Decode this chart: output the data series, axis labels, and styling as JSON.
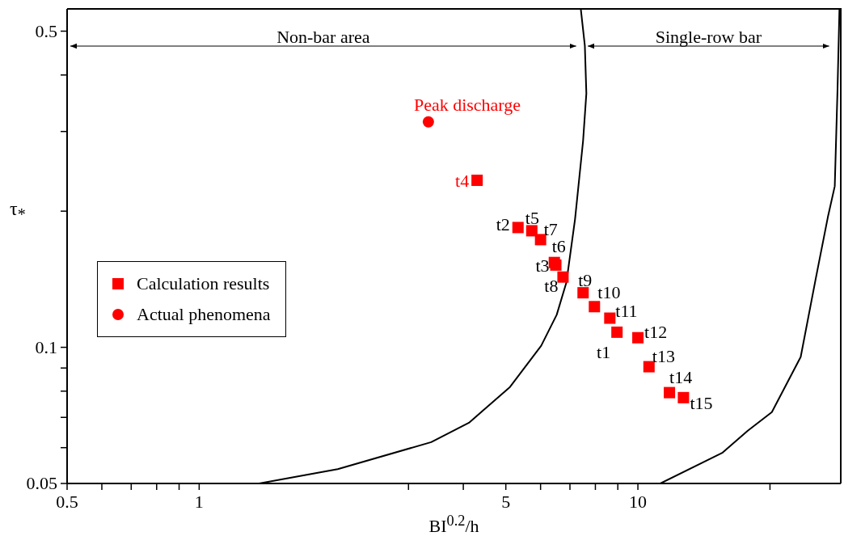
{
  "chart_data": {
    "type": "scatter",
    "xlabel": "BI$^{0.2}$/h",
    "ylabel": "τ$_{*}$",
    "log": "xy",
    "xlim": [
      0.5,
      29
    ],
    "ylim": [
      0.05,
      0.56
    ],
    "xticks": [
      0.5,
      {
        "value": 0.6,
        "label": null
      },
      {
        "value": 0.7,
        "label": null
      },
      {
        "value": 0.8,
        "label": null
      },
      {
        "value": 0.9,
        "label": null
      },
      1,
      {
        "value": 3,
        "label": null
      },
      {
        "value": 4,
        "label": null
      },
      5,
      {
        "value": 6,
        "label": null
      },
      {
        "value": 7,
        "label": null
      },
      {
        "value": 8,
        "label": null
      },
      {
        "value": 9,
        "label": null
      },
      10,
      {
        "value": 20,
        "label": null
      }
    ],
    "yticks": [
      0.05,
      {
        "value": 0.06,
        "label": null
      },
      {
        "value": 0.07,
        "label": null
      },
      {
        "value": 0.08,
        "label": null
      },
      {
        "value": 0.09,
        "label": null
      },
      0.1,
      {
        "value": 0.2,
        "label": null
      },
      {
        "value": 0.3,
        "label": null
      },
      {
        "value": 0.4,
        "label": null
      },
      0.5
    ],
    "legend": "left",
    "series": [
      {
        "name": "Calculation results",
        "type": "scatter",
        "marker": "square",
        "color": "#ff0000",
        "x": [
          8.96,
          5.33,
          6.5,
          4.3,
          5.73,
          6.45,
          6.0,
          6.75,
          7.5,
          7.96,
          8.63,
          10.0,
          10.6,
          11.8,
          12.7
        ],
        "values": [
          0.108,
          0.184,
          0.152,
          0.234,
          0.181,
          0.154,
          0.173,
          0.143,
          0.132,
          0.123,
          0.116,
          0.105,
          0.0906,
          0.0794,
          0.0774
        ]
      },
      {
        "name": "Actual phenomena",
        "type": "scatter",
        "marker": "circle",
        "color": "#ff0000",
        "x": [
          3.33
        ],
        "values": [
          0.315
        ]
      },
      {
        "type": "line",
        "marker": "none",
        "color": "#000000",
        "x": [
          1.37,
          2.07,
          3.38,
          4.12,
          5.11,
          6.02,
          6.53,
          6.87,
          7.19,
          7.5,
          7.63,
          7.57,
          7.41
        ],
        "values": [
          0.05,
          0.0538,
          0.0617,
          0.0681,
          0.0817,
          0.1008,
          0.118,
          0.139,
          0.192,
          0.286,
          0.364,
          0.464,
          0.56
        ]
      },
      {
        "type": "line",
        "marker": "none",
        "color": "#000000",
        "x": [
          11.25,
          15.6,
          17.8,
          20.2,
          23.5,
          25.4,
          27.1,
          28.1,
          28.5,
          28.8
        ],
        "values": [
          0.05,
          0.0585,
          0.0654,
          0.0719,
          0.0952,
          0.141,
          0.194,
          0.227,
          0.367,
          0.56
        ]
      }
    ],
    "annotations": [
      "Non-bar area",
      "Single-row bar",
      {
        "text": "Peak discharge",
        "x": 3.33,
        "y": 0.315
      },
      {
        "text": "t1",
        "x": 8.96,
        "y": 0.108
      },
      {
        "text": "t2",
        "x": 5.33,
        "y": 0.184
      },
      {
        "text": "t3",
        "x": 6.5,
        "y": 0.152
      },
      {
        "text": "t4",
        "x": 4.3,
        "y": 0.234
      },
      {
        "text": "t5",
        "x": 5.73,
        "y": 0.181
      },
      {
        "text": "t6",
        "x": 6.45,
        "y": 0.154
      },
      {
        "text": "t7",
        "x": 6.0,
        "y": 0.173
      },
      {
        "text": "t8",
        "x": 6.75,
        "y": 0.143
      },
      {
        "text": "t9",
        "x": 7.5,
        "y": 0.132
      },
      {
        "text": "t10",
        "x": 7.96,
        "y": 0.123
      },
      {
        "text": "t11",
        "x": 8.63,
        "y": 0.116
      },
      {
        "text": "t12",
        "x": 10.0,
        "y": 0.105
      },
      {
        "text": "t13",
        "x": 10.6,
        "y": 0.0906
      },
      {
        "text": "t14",
        "x": 11.8,
        "y": 0.0794
      },
      {
        "text": "t15",
        "x": 12.7,
        "y": 0.0774
      }
    ]
  }
}
